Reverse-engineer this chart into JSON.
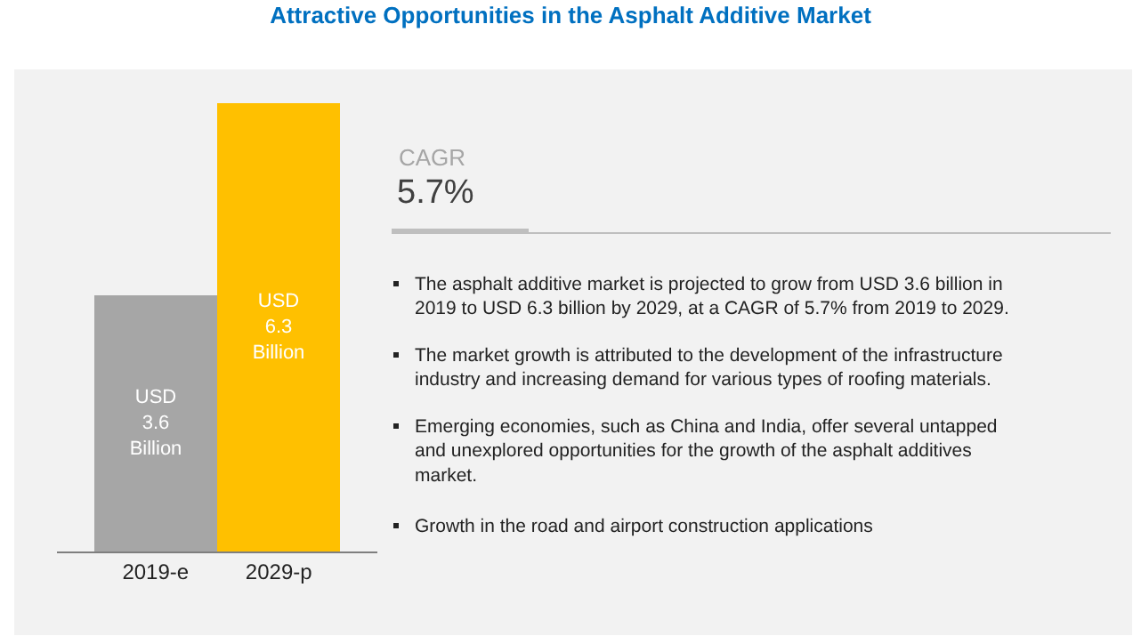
{
  "chart_data": {
    "type": "bar",
    "title": "Attractive Opportunities in the Asphalt Additive Market",
    "categories": [
      "2019-e",
      "2029-p"
    ],
    "values": [
      3.6,
      6.3
    ],
    "colors": [
      "#a6a6a6",
      "#ffc000"
    ],
    "value_labels": [
      "USD\n3.6\nBillion",
      "USD\n6.3\nBillion"
    ],
    "annotations": [
      "CAGR",
      "5.7%",
      "The asphalt additive market is projected to grow from USD 3.6 billion in 2019 to USD 6.3 billion by 2029, at a CAGR of 5.7% from 2019 to 2029.",
      "The market growth is attributed to the development of the infrastructure industry and increasing demand for various types of roofing materials.",
      "Emerging economies, such as China and India, offer several untapped and unexplored opportunities for the growth of the asphalt additives market.",
      "Growth in the road and airport construction applications"
    ]
  }
}
